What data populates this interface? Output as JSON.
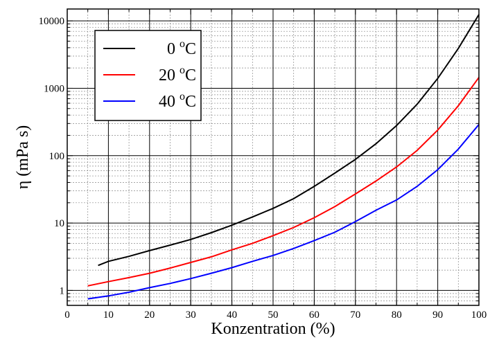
{
  "chart_data": {
    "type": "line",
    "xlabel": "Konzentration (%)",
    "ylabel": "η (mPa s)",
    "xlim": [
      0,
      100
    ],
    "ylim": [
      0.6,
      15000
    ],
    "y_scale": "log",
    "grid": true,
    "legend_position": "top-left",
    "x_ticks": [
      "0",
      "10",
      "20",
      "30",
      "40",
      "50",
      "60",
      "70",
      "80",
      "90",
      "100"
    ],
    "y_ticks": [
      {
        "value": 1,
        "label": "1"
      },
      {
        "value": 10,
        "label": "10"
      },
      {
        "value": 100,
        "label": "100"
      },
      {
        "value": 1000,
        "label": "1000"
      },
      {
        "value": 10000,
        "label": "10000"
      }
    ],
    "series": [
      {
        "name_main": "0 ",
        "name_sup": "o",
        "name_unit": "C",
        "color": "#000000",
        "points": [
          [
            7.5,
            2.35
          ],
          [
            10,
            2.7
          ],
          [
            15,
            3.2
          ],
          [
            20,
            3.9
          ],
          [
            25,
            4.7
          ],
          [
            30,
            5.7
          ],
          [
            35,
            7.2
          ],
          [
            40,
            9.3
          ],
          [
            45,
            12.3
          ],
          [
            50,
            16.5
          ],
          [
            55,
            23
          ],
          [
            60,
            35
          ],
          [
            65,
            55
          ],
          [
            70,
            88
          ],
          [
            75,
            150
          ],
          [
            80,
            280
          ],
          [
            85,
            580
          ],
          [
            90,
            1400
          ],
          [
            95,
            3900
          ],
          [
            100,
            12400
          ]
        ]
      },
      {
        "name_main": "20 ",
        "name_sup": "o",
        "name_unit": "C",
        "color": "#ff0000",
        "points": [
          [
            5,
            1.17
          ],
          [
            10,
            1.35
          ],
          [
            15,
            1.55
          ],
          [
            20,
            1.8
          ],
          [
            25,
            2.15
          ],
          [
            30,
            2.6
          ],
          [
            35,
            3.15
          ],
          [
            40,
            4
          ],
          [
            45,
            5
          ],
          [
            50,
            6.5
          ],
          [
            55,
            8.6
          ],
          [
            60,
            12
          ],
          [
            65,
            17.5
          ],
          [
            70,
            27
          ],
          [
            75,
            42
          ],
          [
            80,
            68
          ],
          [
            85,
            120
          ],
          [
            90,
            240
          ],
          [
            95,
            550
          ],
          [
            100,
            1450
          ]
        ]
      },
      {
        "name_main": "40 ",
        "name_sup": "o",
        "name_unit": "C",
        "color": "#0000ff",
        "points": [
          [
            5,
            0.75
          ],
          [
            10,
            0.83
          ],
          [
            15,
            0.94
          ],
          [
            20,
            1.1
          ],
          [
            25,
            1.27
          ],
          [
            30,
            1.5
          ],
          [
            35,
            1.8
          ],
          [
            40,
            2.18
          ],
          [
            45,
            2.7
          ],
          [
            50,
            3.3
          ],
          [
            55,
            4.2
          ],
          [
            60,
            5.5
          ],
          [
            65,
            7.3
          ],
          [
            70,
            10.5
          ],
          [
            75,
            15.5
          ],
          [
            80,
            22
          ],
          [
            85,
            35
          ],
          [
            90,
            62
          ],
          [
            95,
            125
          ],
          [
            100,
            290
          ]
        ]
      }
    ]
  }
}
